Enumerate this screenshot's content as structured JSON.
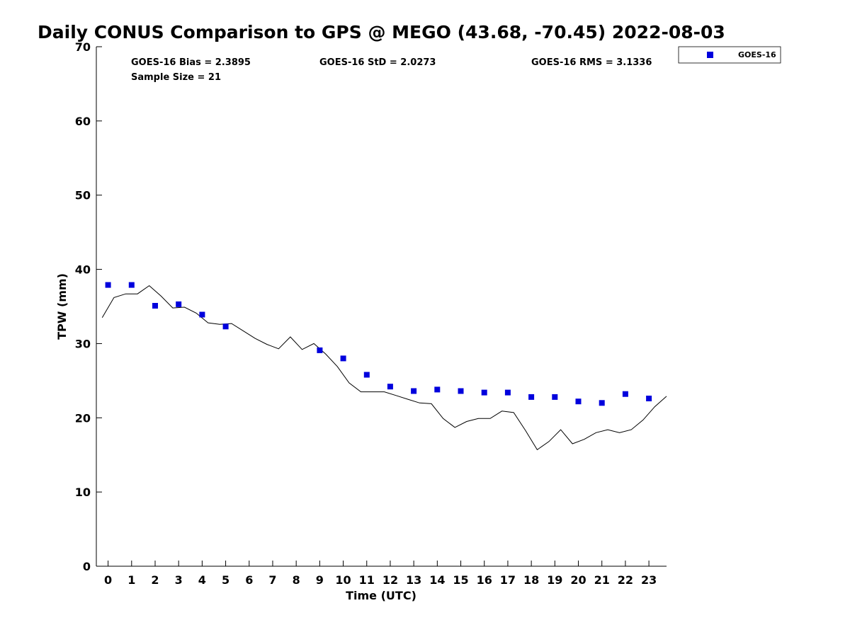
{
  "chart_data": {
    "type": "scatter",
    "title": "Daily CONUS Comparison to GPS @ MEGO (43.68, -70.45) 2022-08-03",
    "xlabel": "Time (UTC)",
    "ylabel": "TPW (mm)",
    "xlim": [
      -0.5,
      23.75
    ],
    "ylim": [
      0,
      70
    ],
    "x_ticks": [
      "0",
      "1",
      "2",
      "3",
      "4",
      "5",
      "6",
      "7",
      "8",
      "9",
      "10",
      "11",
      "12",
      "13",
      "14",
      "15",
      "16",
      "17",
      "18",
      "19",
      "20",
      "21",
      "22",
      "23"
    ],
    "y_ticks": [
      "0",
      "10",
      "20",
      "30",
      "40",
      "50",
      "60",
      "70"
    ],
    "grid": false,
    "legend_position": "top-right",
    "stats": {
      "bias": "GOES-16 Bias = 2.3895",
      "std": "GOES-16 StD = 2.0273",
      "rms": "GOES-16 RMS = 3.1336",
      "sample": "Sample Size = 21"
    },
    "series": [
      {
        "name": "GOES-16",
        "type": "scatter",
        "color": "#0000dd",
        "x": [
          0,
          1,
          2,
          3,
          4,
          5,
          9,
          10,
          11,
          12,
          13,
          14,
          15,
          16,
          17,
          18,
          19,
          20,
          21,
          22,
          23
        ],
        "y": [
          37.9,
          37.9,
          35.1,
          35.3,
          33.9,
          32.3,
          29.1,
          28.0,
          25.8,
          24.2,
          23.6,
          23.8,
          23.6,
          23.4,
          23.4,
          22.8,
          22.8,
          22.2,
          22.0,
          23.2,
          22.6
        ]
      },
      {
        "type": "line",
        "color": "#000000",
        "x": [
          -0.25,
          0.25,
          0.75,
          1.25,
          1.75,
          2.25,
          2.75,
          3.25,
          3.75,
          4.25,
          4.75,
          5.25,
          5.75,
          6.25,
          6.75,
          7.25,
          7.75,
          8.25,
          8.75,
          9.25,
          9.75,
          10.25,
          10.75,
          11.25,
          11.75,
          12.25,
          12.75,
          13.25,
          13.75,
          14.25,
          14.75,
          15.25,
          15.75,
          16.25,
          16.75,
          17.25,
          17.75,
          18.25,
          18.75,
          19.25,
          19.75,
          20.25,
          20.75,
          21.25,
          21.75,
          22.25,
          22.75,
          23.25,
          23.75
        ],
        "y": [
          33.5,
          36.2,
          36.7,
          36.7,
          37.8,
          36.4,
          34.8,
          34.9,
          34.1,
          32.8,
          32.6,
          32.7,
          31.7,
          30.7,
          29.9,
          29.3,
          30.9,
          29.2,
          30.0,
          28.6,
          26.9,
          24.7,
          23.5,
          23.5,
          23.5,
          23.0,
          22.5,
          22.0,
          21.9,
          19.9,
          18.7,
          19.5,
          19.9,
          19.9,
          20.9,
          20.7,
          18.3,
          15.7,
          16.8,
          18.4,
          16.5,
          17.1,
          18.0,
          18.4,
          18.0,
          18.4,
          19.7,
          21.5,
          22.9
        ]
      }
    ]
  }
}
